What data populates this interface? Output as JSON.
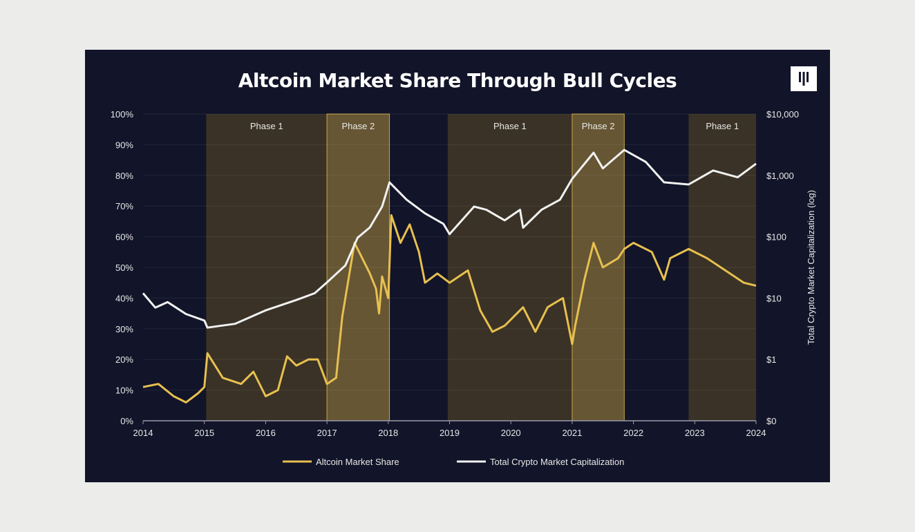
{
  "chart_data": {
    "type": "line",
    "title": "Altcoin Market Share Through Bull Cycles",
    "logo_text": "Pantera",
    "xlim": [
      2014,
      2024
    ],
    "x_ticks": [
      "2014",
      "2015",
      "2016",
      "2017",
      "2018",
      "2019",
      "2020",
      "2021",
      "2022",
      "2023",
      "2024"
    ],
    "y_left": {
      "label": "",
      "lim": [
        0,
        100
      ],
      "ticks": [
        "0%",
        "10%",
        "20%",
        "30%",
        "40%",
        "50%",
        "60%",
        "70%",
        "80%",
        "90%",
        "100%"
      ]
    },
    "y_right": {
      "label": "Total Crypto Market Capitalization (log)",
      "scale": "log",
      "ticks": [
        "$0",
        "$1",
        "$10",
        "$100",
        "$1,000",
        "$10,000"
      ]
    },
    "grid": true,
    "legend": "bottom",
    "phases": [
      {
        "label": "Phase 1",
        "start": 2015.03,
        "end": 2017.0,
        "color": "#3a3226"
      },
      {
        "label": "Phase 2",
        "start": 2017.0,
        "end": 2018.02,
        "color": "#665634"
      },
      {
        "label": "Phase 1",
        "start": 2018.97,
        "end": 2021.0,
        "color": "#3a3226"
      },
      {
        "label": "Phase 2",
        "start": 2021.0,
        "end": 2021.85,
        "color": "#665634"
      },
      {
        "label": "Phase 1",
        "start": 2022.9,
        "end": 2024.0,
        "color": "#3a3226"
      }
    ],
    "series": [
      {
        "name": "Altcoin Market Share",
        "axis": "left",
        "color": "#e8c04f",
        "x": [
          2014.0,
          2014.25,
          2014.5,
          2014.7,
          2014.9,
          2015.0,
          2015.05,
          2015.3,
          2015.6,
          2015.8,
          2016.0,
          2016.2,
          2016.35,
          2016.5,
          2016.7,
          2016.85,
          2017.0,
          2017.15,
          2017.25,
          2017.45,
          2017.55,
          2017.7,
          2017.8,
          2017.85,
          2017.9,
          2018.0,
          2018.05,
          2018.2,
          2018.35,
          2018.5,
          2018.6,
          2018.8,
          2019.0,
          2019.3,
          2019.5,
          2019.7,
          2019.9,
          2020.2,
          2020.4,
          2020.6,
          2020.85,
          2021.0,
          2021.05,
          2021.2,
          2021.35,
          2021.5,
          2021.75,
          2021.85,
          2022.0,
          2022.3,
          2022.5,
          2022.6,
          2022.9,
          2023.2,
          2023.5,
          2023.8,
          2024.0
        ],
        "y": [
          11,
          12,
          8,
          6,
          9,
          11,
          22,
          14,
          12,
          16,
          8,
          10,
          21,
          18,
          20,
          20,
          12,
          14,
          34,
          58,
          54,
          48,
          43,
          35,
          47,
          40,
          67,
          58,
          64,
          55,
          45,
          48,
          45,
          49,
          36,
          29,
          31,
          37,
          29,
          37,
          40,
          25,
          31,
          46,
          58,
          50,
          53,
          56,
          58,
          55,
          46,
          53,
          56,
          53,
          49,
          45,
          44
        ]
      },
      {
        "name": "Total Crypto Market Capitalization",
        "axis": "right",
        "color": "#f2f2f2",
        "x": [
          2014.0,
          2014.2,
          2014.4,
          2014.7,
          2015.0,
          2015.05,
          2015.5,
          2016.0,
          2016.5,
          2016.8,
          2017.0,
          2017.3,
          2017.5,
          2017.7,
          2017.9,
          2018.02,
          2018.3,
          2018.6,
          2018.9,
          2019.0,
          2019.4,
          2019.6,
          2019.9,
          2020.15,
          2020.2,
          2020.5,
          2020.8,
          2021.0,
          2021.35,
          2021.5,
          2021.85,
          2022.2,
          2022.5,
          2022.9,
          2023.3,
          2023.7,
          2024.0
        ],
        "y": [
          12,
          7,
          8.6,
          5.5,
          4.3,
          3.3,
          3.8,
          6.3,
          9.3,
          12,
          18,
          34,
          96,
          142,
          310,
          770,
          400,
          240,
          162,
          110,
          310,
          275,
          185,
          275,
          140,
          275,
          400,
          875,
          2340,
          1300,
          2600,
          1660,
          770,
          710,
          1200,
          930,
          1550
        ]
      }
    ]
  }
}
